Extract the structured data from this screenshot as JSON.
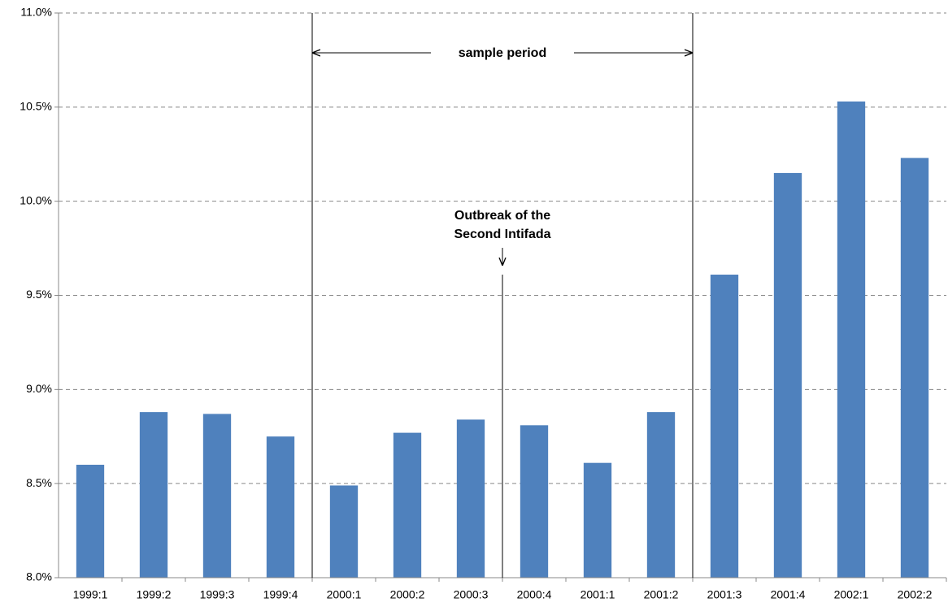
{
  "chart_data": {
    "type": "bar",
    "categories": [
      "1999:1",
      "1999:2",
      "1999:3",
      "1999:4",
      "2000:1",
      "2000:2",
      "2000:3",
      "2000:4",
      "2001:1",
      "2001:2",
      "2001:3",
      "2001:4",
      "2002:1",
      "2002:2"
    ],
    "values": [
      8.6,
      8.88,
      8.87,
      8.75,
      8.49,
      8.77,
      8.84,
      8.81,
      8.61,
      8.88,
      9.61,
      10.15,
      10.53,
      10.23
    ],
    "color": "#4f81bd",
    "ylim": [
      8.0,
      11.0
    ],
    "yticks": [
      {
        "value": 8.0,
        "label": "8.0%"
      },
      {
        "value": 8.5,
        "label": "8.5%"
      },
      {
        "value": 9.0,
        "label": "9.0%"
      },
      {
        "value": 9.5,
        "label": "9.5%"
      },
      {
        "value": 10.0,
        "label": "10.0%"
      },
      {
        "value": 10.5,
        "label": "10.5%"
      },
      {
        "value": 11.0,
        "label": "11.0%"
      }
    ],
    "grid": true,
    "annotations": {
      "sample_period": "sample period",
      "intifada": [
        "Outbreak of the",
        "Second Intifada"
      ]
    }
  }
}
